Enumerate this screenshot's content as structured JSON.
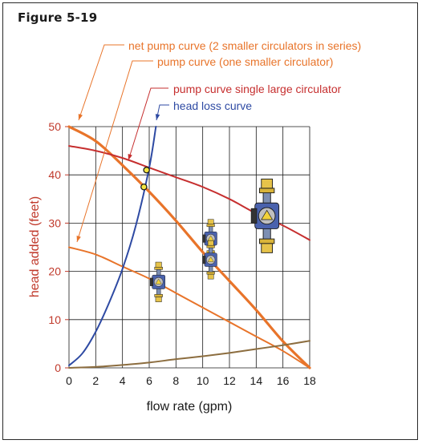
{
  "figure_label": "Figure 5-19",
  "chart_data": {
    "type": "line",
    "xlabel": "flow rate (gpm)",
    "ylabel": "head added (feet)",
    "xlim": [
      0,
      18
    ],
    "ylim": [
      0,
      50
    ],
    "x_ticks": [
      0,
      2,
      4,
      6,
      8,
      10,
      12,
      14,
      16,
      18
    ],
    "y_ticks": [
      0,
      10,
      20,
      30,
      40,
      50
    ],
    "grid": true,
    "series": [
      {
        "name": "net pump curve (2 smaller circulators in series)",
        "color": "#e8742a",
        "x": [
          0,
          2,
          4,
          6,
          8,
          10,
          12,
          14,
          16,
          18
        ],
        "y": [
          50,
          47,
          42,
          36.5,
          30.5,
          24,
          18,
          12,
          5.5,
          0
        ]
      },
      {
        "name": "pump curve (one smaller circulator)",
        "color": "#e8742a",
        "x": [
          0,
          2,
          4,
          6,
          8,
          10,
          12,
          14,
          16,
          18
        ],
        "y": [
          25,
          23.5,
          21,
          18.5,
          15.5,
          12.5,
          9.5,
          6.5,
          3.5,
          0
        ]
      },
      {
        "name": "pump curve single large circulator",
        "color": "#c62f2f",
        "x": [
          0,
          2,
          4,
          6,
          8,
          10,
          12,
          14,
          16,
          18
        ],
        "y": [
          46,
          45,
          43.5,
          41.5,
          39.5,
          37.5,
          35,
          32,
          29.5,
          26.5
        ]
      },
      {
        "name": "head loss curve",
        "color": "#2e4aa3",
        "x": [
          0,
          1,
          2,
          3,
          4,
          5,
          6,
          6.5
        ],
        "y": [
          0.5,
          3,
          7.5,
          13.5,
          20.5,
          29.5,
          41.5,
          50
        ]
      },
      {
        "name": "",
        "color": "#8c6d3f",
        "x": [
          0,
          2,
          4,
          6,
          8,
          10,
          12,
          14,
          16,
          18
        ],
        "y": [
          0,
          0.2,
          0.6,
          1.1,
          1.8,
          2.4,
          3.1,
          3.9,
          4.7,
          5.6
        ]
      }
    ],
    "operating_points": [
      {
        "x": 5.8,
        "y": 41
      },
      {
        "x": 5.6,
        "y": 37.5
      }
    ]
  }
}
